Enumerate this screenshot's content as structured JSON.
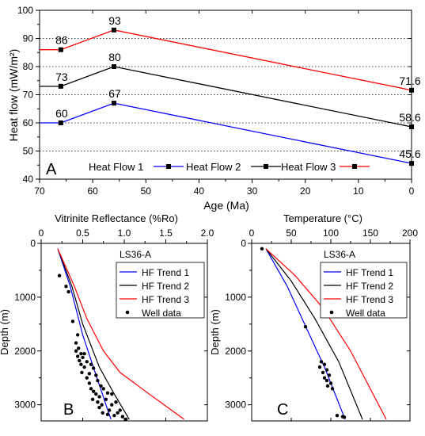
{
  "chart_data": [
    {
      "panel": "A",
      "type": "line",
      "xlabel": "Age (Ma)",
      "ylabel": "Heat flow (mW/m²)",
      "xlim": [
        70,
        0
      ],
      "ylim": [
        40,
        100
      ],
      "x_ticks": [
        70,
        60,
        50,
        40,
        30,
        20,
        10,
        0
      ],
      "y_ticks": [
        40,
        50,
        60,
        70,
        80,
        90,
        100
      ],
      "grid": "dotted horizontal at 50, 60, 70, 80, 90",
      "legend_position": "bottom",
      "series": [
        {
          "name": "Heat Flow 1",
          "color": "#0000ff",
          "marker": "square",
          "points": [
            [
              70,
              60
            ],
            [
              66,
              60
            ],
            [
              56,
              67
            ],
            [
              0,
              45.6
            ]
          ]
        },
        {
          "name": "Heat Flow 2",
          "color": "#000000",
          "marker": "square",
          "points": [
            [
              70,
              73
            ],
            [
              66,
              73
            ],
            [
              56,
              80
            ],
            [
              0,
              58.6
            ]
          ]
        },
        {
          "name": "Heat Flow 3",
          "color": "#ff0000",
          "marker": "square",
          "points": [
            [
              70,
              86
            ],
            [
              66,
              86
            ],
            [
              56,
              93
            ],
            [
              0,
              71.6
            ]
          ]
        }
      ],
      "annotations": [
        {
          "text": "60",
          "x": 66,
          "y": 60
        },
        {
          "text": "67",
          "x": 56,
          "y": 67
        },
        {
          "text": "45.6",
          "x": 0,
          "y": 45.6
        },
        {
          "text": "73",
          "x": 66,
          "y": 73
        },
        {
          "text": "80",
          "x": 56,
          "y": 80
        },
        {
          "text": "58.6",
          "x": 0,
          "y": 58.6
        },
        {
          "text": "86",
          "x": 66,
          "y": 86
        },
        {
          "text": "93",
          "x": 56,
          "y": 93
        },
        {
          "text": "71.6",
          "x": 0,
          "y": 71.6
        }
      ]
    },
    {
      "panel": "B",
      "type": "line",
      "title": "LS36-A",
      "xlabel": "Vitrinite Reflectance (%Ro)",
      "ylabel": "Depth (m)",
      "xlim": [
        0,
        2.0
      ],
      "ylim": [
        0,
        3300
      ],
      "x_ticks": [
        "0",
        "0.5",
        "1.0",
        "1.5",
        "2.0"
      ],
      "y_ticks": [
        0,
        1000,
        2000,
        3000
      ],
      "legend_position": "top-right",
      "series": [
        {
          "name": "HF Trend 1",
          "color": "#0000ff",
          "points": [
            [
              0.2,
              100
            ],
            [
              0.35,
              800
            ],
            [
              0.5,
              1700
            ],
            [
              0.65,
              2400
            ],
            [
              0.78,
              3000
            ],
            [
              0.84,
              3270
            ]
          ]
        },
        {
          "name": "HF Trend 2",
          "color": "#000000",
          "points": [
            [
              0.2,
              100
            ],
            [
              0.37,
              800
            ],
            [
              0.5,
              1500
            ],
            [
              0.7,
              2300
            ],
            [
              0.88,
              2800
            ],
            [
              1.06,
              3270
            ]
          ]
        },
        {
          "name": "HF Trend 3",
          "color": "#ff0000",
          "points": [
            [
              0.2,
              100
            ],
            [
              0.4,
              800
            ],
            [
              0.55,
              1400
            ],
            [
              0.75,
              2000
            ],
            [
              0.95,
              2400
            ],
            [
              1.3,
              2800
            ],
            [
              1.72,
              3270
            ]
          ]
        },
        {
          "name": "Well data",
          "color": "#000000",
          "style": "points",
          "points": [
            [
              0.22,
              600
            ],
            [
              0.3,
              800
            ],
            [
              0.33,
              900
            ],
            [
              0.38,
              1450
            ],
            [
              0.44,
              1700
            ],
            [
              0.42,
              1850
            ],
            [
              0.45,
              1950
            ],
            [
              0.42,
              2000
            ],
            [
              0.48,
              2050
            ],
            [
              0.52,
              2050
            ],
            [
              0.44,
              2100
            ],
            [
              0.5,
              2120
            ],
            [
              0.46,
              2180
            ],
            [
              0.55,
              2200
            ],
            [
              0.48,
              2250
            ],
            [
              0.6,
              2250
            ],
            [
              0.52,
              2300
            ],
            [
              0.63,
              2320
            ],
            [
              0.49,
              2400
            ],
            [
              0.58,
              2420
            ],
            [
              0.66,
              2450
            ],
            [
              0.55,
              2500
            ],
            [
              0.68,
              2550
            ],
            [
              0.58,
              2600
            ],
            [
              0.72,
              2650
            ],
            [
              0.6,
              2700
            ],
            [
              0.75,
              2700
            ],
            [
              0.63,
              2750
            ],
            [
              0.8,
              2780
            ],
            [
              0.66,
              2800
            ],
            [
              0.85,
              2800
            ],
            [
              0.7,
              2850
            ],
            [
              0.62,
              2900
            ],
            [
              0.78,
              2900
            ],
            [
              0.68,
              2950
            ],
            [
              0.9,
              2950
            ],
            [
              0.73,
              3000
            ],
            [
              0.85,
              3000
            ],
            [
              0.7,
              3050
            ],
            [
              0.82,
              3100
            ],
            [
              0.95,
              3100
            ],
            [
              0.74,
              3150
            ],
            [
              0.92,
              3150
            ],
            [
              0.8,
              3180
            ],
            [
              0.88,
              3200
            ],
            [
              0.98,
              3220
            ],
            [
              1.02,
              3270
            ]
          ]
        }
      ]
    },
    {
      "panel": "C",
      "type": "line",
      "title": "LS36-A",
      "xlabel": "Temperature (°C)",
      "ylabel": "Depth (m)",
      "xlim": [
        0,
        200
      ],
      "ylim": [
        0,
        3300
      ],
      "x_ticks": [
        0,
        50,
        100,
        150,
        200
      ],
      "y_ticks": [
        0,
        1000,
        2000,
        3000
      ],
      "legend_position": "top-right",
      "series": [
        {
          "name": "HF Trend 1",
          "color": "#0000ff",
          "points": [
            [
              18,
              100
            ],
            [
              45,
              800
            ],
            [
              70,
              1600
            ],
            [
              92,
              2300
            ],
            [
              118,
              3270
            ]
          ]
        },
        {
          "name": "HF Trend 2",
          "color": "#000000",
          "points": [
            [
              18,
              100
            ],
            [
              50,
              700
            ],
            [
              80,
              1400
            ],
            [
              110,
              2200
            ],
            [
              140,
              3270
            ]
          ]
        },
        {
          "name": "HF Trend 3",
          "color": "#ff0000",
          "points": [
            [
              18,
              100
            ],
            [
              55,
              600
            ],
            [
              90,
              1200
            ],
            [
              125,
              2000
            ],
            [
              170,
              3270
            ]
          ]
        },
        {
          "name": "Well data",
          "color": "#000000",
          "style": "points",
          "points": [
            [
              13,
              100
            ],
            [
              68,
              1550
            ],
            [
              88,
              2200
            ],
            [
              92,
              2250
            ],
            [
              86,
              2300
            ],
            [
              95,
              2350
            ],
            [
              90,
              2400
            ],
            [
              98,
              2450
            ],
            [
              92,
              2500
            ],
            [
              95,
              2550
            ],
            [
              100,
              2600
            ],
            [
              96,
              2650
            ],
            [
              102,
              2700
            ],
            [
              108,
              3200
            ],
            [
              115,
              3220
            ],
            [
              117,
              3230
            ]
          ]
        }
      ]
    }
  ]
}
